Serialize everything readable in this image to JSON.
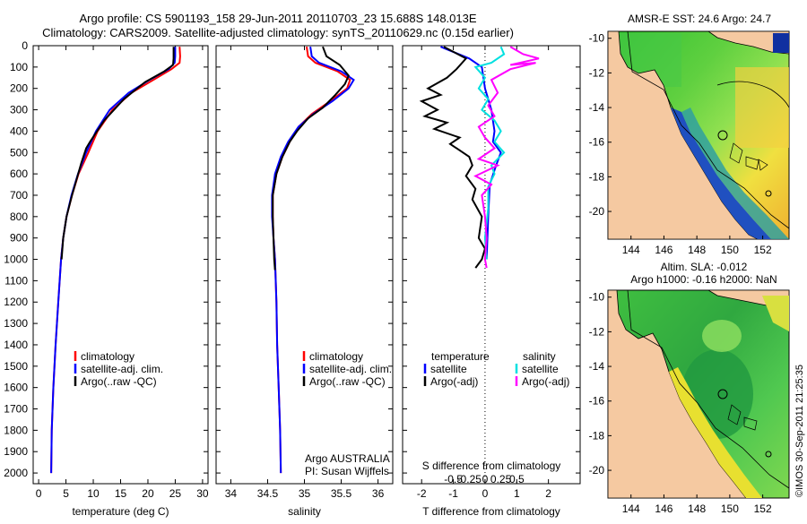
{
  "title_line1": "Argo profile: CS 5901193_158 29-Jun-2011 20110703_23 15.688S 148.013E",
  "title_line2": "Climatology: CARS2009. Satellite-adjusted climatology: synTS_20110629.nc (0.15d earlier)",
  "colors": {
    "clim": "#ff0000",
    "sat": "#0000ff",
    "argo": "#000000",
    "sat_s": "#00e0e0",
    "argo_s": "#ff00ff",
    "land": "#f5c9a1"
  },
  "chart_data": [
    {
      "id": "temperature",
      "type": "line",
      "xlabel": "temperature (deg C)",
      "xlim": [
        -1,
        31
      ],
      "xticks": [
        0,
        5,
        10,
        15,
        20,
        25,
        30
      ],
      "ylim": [
        0,
        2050
      ],
      "yticks": [
        0,
        100,
        200,
        300,
        400,
        500,
        600,
        700,
        800,
        900,
        1000,
        1100,
        1200,
        1300,
        1400,
        1500,
        1600,
        1700,
        1800,
        1900,
        2000
      ],
      "legend": [
        "climatology",
        "satellite-adj. clim.",
        "Argo(..raw -QC)"
      ],
      "series": [
        {
          "name": "climatology",
          "color": "clim",
          "points": [
            [
              25.8,
              5
            ],
            [
              25.9,
              50
            ],
            [
              25.8,
              80
            ],
            [
              24.3,
              110
            ],
            [
              21,
              160
            ],
            [
              17,
              220
            ],
            [
              13.5,
              300
            ],
            [
              10.8,
              400
            ],
            [
              9.1,
              500
            ],
            [
              7.3,
              600
            ],
            [
              6.1,
              700
            ],
            [
              5.1,
              800
            ],
            [
              4.5,
              900
            ],
            [
              4.1,
              1000
            ],
            [
              3.6,
              1200
            ],
            [
              3.1,
              1400
            ],
            [
              2.7,
              1600
            ],
            [
              2.4,
              1800
            ],
            [
              2.3,
              2000
            ]
          ]
        },
        {
          "name": "satellite-adj. clim.",
          "color": "sat",
          "points": [
            [
              25,
              5
            ],
            [
              25,
              50
            ],
            [
              24.9,
              80
            ],
            [
              23.8,
              110
            ],
            [
              20.3,
              160
            ],
            [
              16.5,
              220
            ],
            [
              13,
              300
            ],
            [
              10.5,
              400
            ],
            [
              8.7,
              500
            ],
            [
              7.2,
              600
            ],
            [
              6,
              700
            ],
            [
              5.1,
              800
            ],
            [
              4.5,
              900
            ],
            [
              4.1,
              1000
            ],
            [
              3.6,
              1200
            ],
            [
              3.1,
              1400
            ],
            [
              2.7,
              1600
            ],
            [
              2.4,
              1800
            ],
            [
              2.3,
              2000
            ]
          ]
        },
        {
          "name": "Argo(..raw -QC)",
          "color": "argo",
          "points": [
            [
              24.7,
              5
            ],
            [
              24.7,
              60
            ],
            [
              24.6,
              90
            ],
            [
              23,
              120
            ],
            [
              19.5,
              170
            ],
            [
              15.6,
              250
            ],
            [
              12,
              350
            ],
            [
              9.4,
              450
            ],
            [
              8.7,
              480
            ],
            [
              7.8,
              550
            ],
            [
              7,
              620
            ],
            [
              6.1,
              700
            ],
            [
              5.1,
              800
            ],
            [
              4.5,
              900
            ],
            [
              4.2,
              1000
            ]
          ]
        }
      ]
    },
    {
      "id": "salinity",
      "type": "line",
      "xlabel": "salinity",
      "xlim": [
        33.8,
        36.2
      ],
      "xticks": [
        34,
        34.5,
        35,
        35.5,
        36
      ],
      "ylim": [
        0,
        2050
      ],
      "legend": [
        "climatology",
        "satellite-adj. clim.",
        "Argo(..raw -QC)"
      ],
      "annotation": [
        "Argo AUSTRALIA",
        "PI: Susan Wijffels"
      ],
      "series": [
        {
          "name": "climatology",
          "color": "clim",
          "points": [
            [
              35.03,
              5
            ],
            [
              35.05,
              50
            ],
            [
              35.15,
              80
            ],
            [
              35.45,
              120
            ],
            [
              35.62,
              160
            ],
            [
              35.58,
              200
            ],
            [
              35.35,
              260
            ],
            [
              35.1,
              320
            ],
            [
              34.92,
              380
            ],
            [
              34.8,
              450
            ],
            [
              34.7,
              520
            ],
            [
              34.62,
              600
            ],
            [
              34.57,
              700
            ],
            [
              34.57,
              800
            ],
            [
              34.58,
              900
            ],
            [
              34.6,
              1000
            ],
            [
              34.62,
              1200
            ],
            [
              34.63,
              1400
            ],
            [
              34.65,
              1600
            ],
            [
              34.67,
              1800
            ],
            [
              34.68,
              2000
            ]
          ]
        },
        {
          "name": "satellite-adj. clim.",
          "color": "sat",
          "points": [
            [
              35.08,
              5
            ],
            [
              35.1,
              50
            ],
            [
              35.2,
              80
            ],
            [
              35.5,
              120
            ],
            [
              35.67,
              160
            ],
            [
              35.6,
              200
            ],
            [
              35.38,
              260
            ],
            [
              35.12,
              320
            ],
            [
              34.92,
              380
            ],
            [
              34.78,
              450
            ],
            [
              34.68,
              520
            ],
            [
              34.6,
              600
            ],
            [
              34.56,
              700
            ],
            [
              34.56,
              800
            ],
            [
              34.58,
              900
            ],
            [
              34.6,
              1000
            ],
            [
              34.62,
              1200
            ],
            [
              34.63,
              1400
            ],
            [
              34.65,
              1600
            ],
            [
              34.67,
              1800
            ],
            [
              34.68,
              2000
            ]
          ]
        },
        {
          "name": "Argo(..raw -QC)",
          "color": "argo",
          "points": [
            [
              35.25,
              5
            ],
            [
              35.3,
              50
            ],
            [
              35.48,
              90
            ],
            [
              35.6,
              140
            ],
            [
              35.55,
              180
            ],
            [
              35.42,
              230
            ],
            [
              35.25,
              290
            ],
            [
              35.05,
              340
            ],
            [
              34.9,
              400
            ],
            [
              34.8,
              450
            ],
            [
              34.7,
              520
            ],
            [
              34.62,
              600
            ],
            [
              34.57,
              700
            ],
            [
              34.57,
              800
            ],
            [
              34.58,
              900
            ],
            [
              34.59,
              1000
            ],
            [
              34.6,
              1050
            ]
          ]
        }
      ]
    },
    {
      "id": "difference",
      "type": "line",
      "xlabel_top": "S difference from climatology",
      "xlabel": "T difference from climatology",
      "xlim": [
        -2.6,
        3
      ],
      "xticks": [
        -2,
        -1,
        0,
        1,
        2
      ],
      "xticks_top": [
        {
          "v": -1,
          "label": "-0.5"
        },
        {
          "v": -0.5,
          "label": "-0.25"
        },
        {
          "v": 0,
          "label": "0"
        },
        {
          "v": 0.5,
          "label": "0.25"
        },
        {
          "v": 1,
          "label": "0.5"
        }
      ],
      "ylim": [
        0,
        2050
      ],
      "legend_left": [
        "temperature",
        "satellite",
        "Argo(-adj)"
      ],
      "legend_right": [
        "salinity",
        "satellite",
        "Argo(-adj)"
      ],
      "series": [
        {
          "name": "T satellite",
          "color": "sat",
          "points": [
            [
              -1.4,
              5
            ],
            [
              -0.5,
              60
            ],
            [
              -0.1,
              100
            ],
            [
              0,
              200
            ],
            [
              0.2,
              300
            ],
            [
              0.3,
              400
            ],
            [
              0.25,
              450
            ],
            [
              0.5,
              500
            ],
            [
              0.35,
              560
            ],
            [
              0.15,
              650
            ],
            [
              0.1,
              800
            ],
            [
              0.05,
              1000
            ]
          ]
        },
        {
          "name": "T Argo(-adj)",
          "color": "argo",
          "points": [
            [
              -1.3,
              5
            ],
            [
              -0.6,
              60
            ],
            [
              -0.9,
              110
            ],
            [
              -1.2,
              150
            ],
            [
              -1.8,
              200
            ],
            [
              -1.4,
              230
            ],
            [
              -2.0,
              260
            ],
            [
              -1.5,
              300
            ],
            [
              -1.9,
              330
            ],
            [
              -1.2,
              360
            ],
            [
              -1.6,
              390
            ],
            [
              -0.8,
              430
            ],
            [
              -1.1,
              460
            ],
            [
              -0.5,
              520
            ],
            [
              -0.4,
              560
            ],
            [
              -0.6,
              610
            ],
            [
              -0.3,
              670
            ],
            [
              -0.4,
              720
            ],
            [
              -0.1,
              800
            ],
            [
              -0.2,
              900
            ],
            [
              0,
              950
            ],
            [
              -0.1,
              1000
            ],
            [
              -0.3,
              1040
            ]
          ]
        },
        {
          "name": "S satellite",
          "color": "sat_s",
          "points": [
            [
              0.5,
              5
            ],
            [
              0.6,
              40
            ],
            [
              0.2,
              80
            ],
            [
              -0.3,
              100
            ],
            [
              0.0,
              150
            ],
            [
              -0.2,
              200
            ],
            [
              0.1,
              250
            ],
            [
              -0.1,
              300
            ],
            [
              0.3,
              350
            ],
            [
              0.5,
              400
            ],
            [
              0.3,
              450
            ],
            [
              0.6,
              500
            ],
            [
              0.2,
              560
            ],
            [
              0.3,
              600
            ],
            [
              0.1,
              660
            ],
            [
              0.1,
              760
            ],
            [
              0.0,
              900
            ],
            [
              0.05,
              1000
            ]
          ]
        },
        {
          "name": "S Argo(-adj)",
          "color": "argo_s",
          "points": [
            [
              0.8,
              5
            ],
            [
              1.2,
              40
            ],
            [
              1.7,
              60
            ],
            [
              0.8,
              90
            ],
            [
              1.6,
              80
            ],
            [
              0.8,
              110
            ],
            [
              0.2,
              160
            ],
            [
              0.4,
              220
            ],
            [
              0.1,
              280
            ],
            [
              0.3,
              330
            ],
            [
              -0.2,
              380
            ],
            [
              0.0,
              430
            ],
            [
              0.3,
              480
            ],
            [
              -0.2,
              530
            ],
            [
              0.4,
              560
            ],
            [
              -0.3,
              610
            ],
            [
              0.2,
              650
            ],
            [
              -0.1,
              700
            ],
            [
              0.0,
              800
            ],
            [
              0.05,
              900
            ],
            [
              0.0,
              1000
            ],
            [
              0.05,
              1040
            ]
          ]
        }
      ]
    }
  ],
  "map_top": {
    "title": "AMSR-E SST: 24.6  Argo: 24.7",
    "xticks": [
      144,
      146,
      148,
      150,
      152
    ],
    "yticks": [
      -10,
      -12,
      -14,
      -16,
      -18,
      -20
    ]
  },
  "map_bottom": {
    "title_line1": "Altim. SLA: -0.012",
    "title_line2": "Argo h1000: -0.16 h2000: NaN",
    "xticks": [
      144,
      146,
      148,
      150,
      152
    ],
    "yticks": [
      -10,
      -12,
      -14,
      -16,
      -18,
      -20
    ]
  },
  "footer_stamp": "©IMOS 30-Sep-2011 21:25:35"
}
